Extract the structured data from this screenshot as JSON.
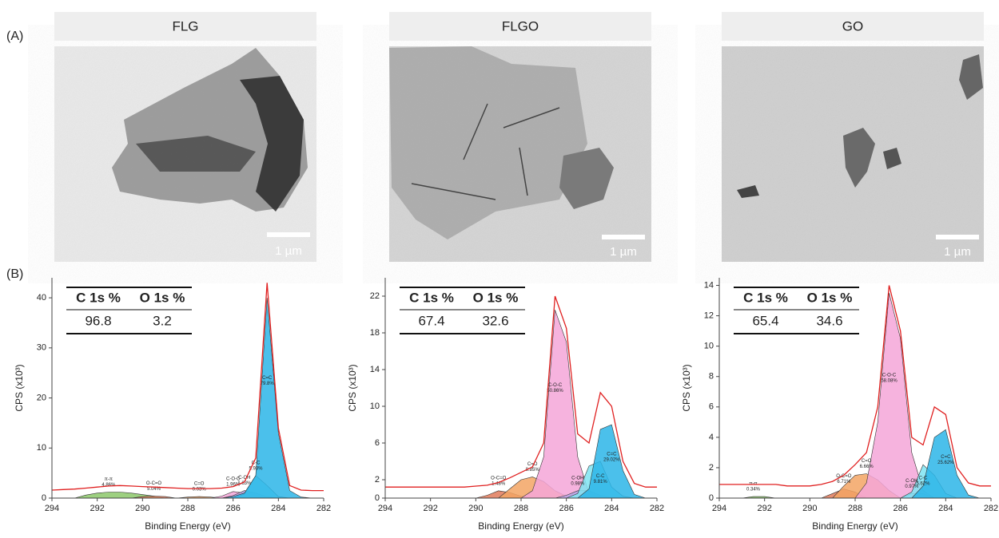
{
  "figure": {
    "panel_a": "(A)",
    "panel_b": "(B)"
  },
  "tem_images": [
    {
      "scale_bar": "1 µm"
    },
    {
      "scale_bar": "1 µm"
    },
    {
      "scale_bar": "1 µm"
    }
  ],
  "chart_data": [
    {
      "type": "area",
      "title": "FLG",
      "xlabel": "Binding Energy (eV)",
      "ylabel": "CPS (x10³)",
      "xlim": [
        294,
        282
      ],
      "xticks": [
        294,
        292,
        290,
        288,
        286,
        284,
        282
      ],
      "ylim": [
        0,
        44
      ],
      "yticks": [
        0,
        10,
        20,
        30,
        40
      ],
      "table": {
        "headers": [
          "C 1s %",
          "O 1s %"
        ],
        "values": [
          96.8,
          3.2
        ]
      },
      "x": [
        294,
        293.5,
        293,
        292.5,
        292,
        291.5,
        291,
        290.5,
        290,
        289.5,
        289,
        288.5,
        288,
        287.5,
        287,
        286.5,
        286,
        285.5,
        285,
        284.5,
        284,
        283.5,
        283,
        282.5,
        282
      ],
      "envelope": {
        "color": "#e02020",
        "values": [
          1.6,
          1.7,
          1.8,
          2.0,
          2.2,
          2.4,
          2.5,
          2.4,
          2.3,
          2.2,
          2.1,
          2.0,
          1.9,
          1.9,
          1.9,
          2.0,
          2.3,
          3.2,
          8.0,
          43.0,
          14.0,
          2.5,
          1.6,
          1.5,
          1.5
        ]
      },
      "series": [
        {
          "name": "π-π",
          "share": "4.86%",
          "color": "#8cc86a",
          "values": [
            0,
            0,
            0,
            0.6,
            1.0,
            1.2,
            1.2,
            1.0,
            0.7,
            0.4,
            0,
            0,
            0,
            0,
            0,
            0,
            0,
            0,
            0,
            0,
            0,
            0,
            0,
            0,
            0
          ]
        },
        {
          "name": "O-C=O",
          "share": "5.04%",
          "color": "#e07a5a",
          "values": [
            0,
            0,
            0,
            0,
            0,
            0,
            0,
            0,
            0.3,
            0.4,
            0.3,
            0,
            0,
            0,
            0,
            0,
            0,
            0,
            0,
            0,
            0,
            0,
            0,
            0,
            0
          ]
        },
        {
          "name": "C=O",
          "share": "0.03%",
          "color": "#f3a564",
          "values": [
            0,
            0,
            0,
            0,
            0,
            0,
            0,
            0,
            0,
            0,
            0,
            0,
            0.2,
            0.3,
            0.2,
            0,
            0,
            0,
            0,
            0,
            0,
            0,
            0,
            0,
            0
          ]
        },
        {
          "name": "C-O-C",
          "share": "1.96%",
          "color": "#f4a6d8",
          "values": [
            0,
            0,
            0,
            0,
            0,
            0,
            0,
            0,
            0,
            0,
            0,
            0,
            0,
            0,
            0,
            0.4,
            1.3,
            1.0,
            0.3,
            0,
            0,
            0,
            0,
            0,
            0
          ]
        },
        {
          "name": "C-OH",
          "share": "1.63%",
          "color": "#b7a6e6",
          "values": [
            0,
            0,
            0,
            0,
            0,
            0,
            0,
            0,
            0,
            0,
            0,
            0,
            0,
            0,
            0,
            0,
            0.5,
            1.5,
            1.0,
            0.2,
            0,
            0,
            0,
            0,
            0
          ]
        },
        {
          "name": "C-C",
          "share": "5.93%",
          "color": "#7fe4f2",
          "values": [
            0,
            0,
            0,
            0,
            0,
            0,
            0,
            0,
            0,
            0,
            0,
            0,
            0,
            0,
            0,
            0,
            0,
            0.8,
            4.5,
            2.5,
            0.3,
            0,
            0,
            0,
            0
          ]
        },
        {
          "name": "C=C",
          "share": "79.8%",
          "color": "#2cb5e8",
          "values": [
            0,
            0,
            0,
            0,
            0,
            0,
            0,
            0,
            0,
            0,
            0,
            0,
            0,
            0,
            0,
            0,
            0.3,
            1.0,
            4.5,
            40.0,
            13.0,
            1.5,
            0.2,
            0,
            0
          ]
        }
      ]
    },
    {
      "type": "area",
      "title": "FLGO",
      "xlabel": "Binding Energy (eV)",
      "ylabel": "CPS (x10³)",
      "xlim": [
        294,
        282
      ],
      "xticks": [
        294,
        292,
        290,
        288,
        286,
        284,
        282
      ],
      "ylim": [
        0,
        24
      ],
      "yticks": [
        0,
        2,
        6,
        10,
        14,
        18,
        22
      ],
      "table": {
        "headers": [
          "C 1s %",
          "O 1s %"
        ],
        "values": [
          67.4,
          32.6
        ]
      },
      "x": [
        294,
        293.5,
        293,
        292.5,
        292,
        291.5,
        291,
        290.5,
        290,
        289.5,
        289,
        288.5,
        288,
        287.5,
        287,
        286.5,
        286,
        285.5,
        285,
        284.5,
        284,
        283.5,
        283,
        282.5,
        282
      ],
      "envelope": {
        "color": "#e02020",
        "values": [
          1.2,
          1.2,
          1.2,
          1.2,
          1.2,
          1.2,
          1.2,
          1.2,
          1.3,
          1.4,
          1.7,
          2.2,
          2.8,
          3.4,
          6.0,
          22.0,
          18.5,
          7.0,
          6.0,
          11.5,
          10.0,
          4.0,
          1.6,
          1.2,
          1.2
        ]
      },
      "series": [
        {
          "name": "O-C=O",
          "share": "1.48%",
          "color": "#e07a5a",
          "values": [
            0,
            0,
            0,
            0,
            0,
            0,
            0,
            0,
            0,
            0.3,
            0.8,
            0.6,
            0.2,
            0,
            0,
            0,
            0,
            0,
            0,
            0,
            0,
            0,
            0,
            0,
            0
          ]
        },
        {
          "name": "C=O",
          "share": "8.85%",
          "color": "#f3a564",
          "values": [
            0,
            0,
            0,
            0,
            0,
            0,
            0,
            0,
            0,
            0,
            0,
            1.0,
            2.0,
            2.3,
            1.8,
            0.8,
            0.2,
            0,
            0,
            0,
            0,
            0,
            0,
            0,
            0
          ]
        },
        {
          "name": "C-O-C",
          "share": "50.86%",
          "color": "#f4a6d8",
          "values": [
            0,
            0,
            0,
            0,
            0,
            0,
            0,
            0,
            0,
            0,
            0,
            0,
            0,
            0.8,
            4.5,
            20.5,
            17.0,
            4.5,
            0.5,
            0,
            0,
            0,
            0,
            0,
            0
          ]
        },
        {
          "name": "C-OH",
          "share": "0.98%",
          "color": "#b7a6e6",
          "values": [
            0,
            0,
            0,
            0,
            0,
            0,
            0,
            0,
            0,
            0,
            0,
            0,
            0,
            0,
            0,
            0,
            0.3,
            0.8,
            0.8,
            0.3,
            0,
            0,
            0,
            0,
            0
          ]
        },
        {
          "name": "C-C",
          "share": "9.81%",
          "color": "#7fe4f2",
          "values": [
            0,
            0,
            0,
            0,
            0,
            0,
            0,
            0,
            0,
            0,
            0,
            0,
            0,
            0,
            0,
            0,
            0,
            0.5,
            3.5,
            4.0,
            1.2,
            0.2,
            0,
            0,
            0
          ]
        },
        {
          "name": "C=C",
          "share": "29.02%",
          "color": "#2cb5e8",
          "values": [
            0,
            0,
            0,
            0,
            0,
            0,
            0,
            0,
            0,
            0,
            0,
            0,
            0,
            0,
            0,
            0,
            0,
            0,
            1.0,
            7.5,
            8.0,
            3.0,
            0.4,
            0,
            0
          ]
        }
      ]
    },
    {
      "type": "area",
      "title": "GO",
      "xlabel": "Binding Energy (eV)",
      "ylabel": "CPS (x10³)",
      "xlim": [
        294,
        282
      ],
      "xticks": [
        294,
        292,
        290,
        288,
        286,
        284,
        282
      ],
      "ylim": [
        0,
        14.5
      ],
      "yticks": [
        0,
        2,
        4,
        6,
        8,
        10,
        12,
        14
      ],
      "table": {
        "headers": [
          "C 1s %",
          "O 1s %"
        ],
        "values": [
          65.4,
          34.6
        ]
      },
      "x": [
        294,
        293.5,
        293,
        292.5,
        292,
        291.5,
        291,
        290.5,
        290,
        289.5,
        289,
        288.5,
        288,
        287.5,
        287,
        286.5,
        286,
        285.5,
        285,
        284.5,
        284,
        283.5,
        283,
        282.5,
        282
      ],
      "envelope": {
        "color": "#e02020",
        "values": [
          0.9,
          0.9,
          0.9,
          0.9,
          0.9,
          0.9,
          0.8,
          0.8,
          0.8,
          0.9,
          1.1,
          1.5,
          2.2,
          3.0,
          6.0,
          14.0,
          11.0,
          4.0,
          3.5,
          6.0,
          5.5,
          2.0,
          1.0,
          0.8,
          0.8
        ]
      },
      "series": [
        {
          "name": "π-π",
          "share": "0.34%",
          "color": "#8cc86a",
          "values": [
            0,
            0,
            0,
            0.1,
            0.1,
            0,
            0,
            0,
            0,
            0,
            0,
            0,
            0,
            0,
            0,
            0,
            0,
            0,
            0,
            0,
            0,
            0,
            0,
            0,
            0
          ]
        },
        {
          "name": "O-C=O",
          "share": "6.71%",
          "color": "#e07a5a",
          "values": [
            0,
            0,
            0,
            0,
            0,
            0,
            0,
            0,
            0,
            0,
            0.3,
            0.6,
            0.4,
            0,
            0,
            0,
            0,
            0,
            0,
            0,
            0,
            0,
            0,
            0,
            0
          ]
        },
        {
          "name": "C=O",
          "share": "6.66%",
          "color": "#f3a564",
          "values": [
            0,
            0,
            0,
            0,
            0,
            0,
            0,
            0,
            0,
            0,
            0,
            0.8,
            1.5,
            1.6,
            1.2,
            0.5,
            0,
            0,
            0,
            0,
            0,
            0,
            0,
            0,
            0
          ]
        },
        {
          "name": "C-O-C",
          "share": "58.08%",
          "color": "#f4a6d8",
          "values": [
            0,
            0,
            0,
            0,
            0,
            0,
            0,
            0,
            0,
            0,
            0,
            0,
            0,
            1.0,
            5.0,
            13.5,
            10.5,
            3.0,
            0.5,
            0,
            0,
            0,
            0,
            0,
            0
          ]
        },
        {
          "name": "C-OH",
          "share": "0.97%",
          "color": "#b7a6e6",
          "values": [
            0,
            0,
            0,
            0,
            0,
            0,
            0,
            0,
            0,
            0,
            0,
            0,
            0,
            0,
            0,
            0,
            0,
            0.3,
            0.3,
            0,
            0,
            0,
            0,
            0,
            0
          ]
        },
        {
          "name": "C-C",
          "share": "5.62%",
          "color": "#7fe4f2",
          "values": [
            0,
            0,
            0,
            0,
            0,
            0,
            0,
            0,
            0,
            0,
            0,
            0,
            0,
            0,
            0,
            0,
            0,
            0.4,
            2.2,
            1.5,
            0.3,
            0,
            0,
            0,
            0
          ]
        },
        {
          "name": "C=C",
          "share": "25.62%",
          "color": "#2cb5e8",
          "values": [
            0,
            0,
            0,
            0,
            0,
            0,
            0,
            0,
            0,
            0,
            0,
            0,
            0,
            0,
            0,
            0,
            0,
            0,
            0.8,
            4.0,
            4.5,
            1.5,
            0.2,
            0,
            0
          ]
        }
      ]
    }
  ]
}
